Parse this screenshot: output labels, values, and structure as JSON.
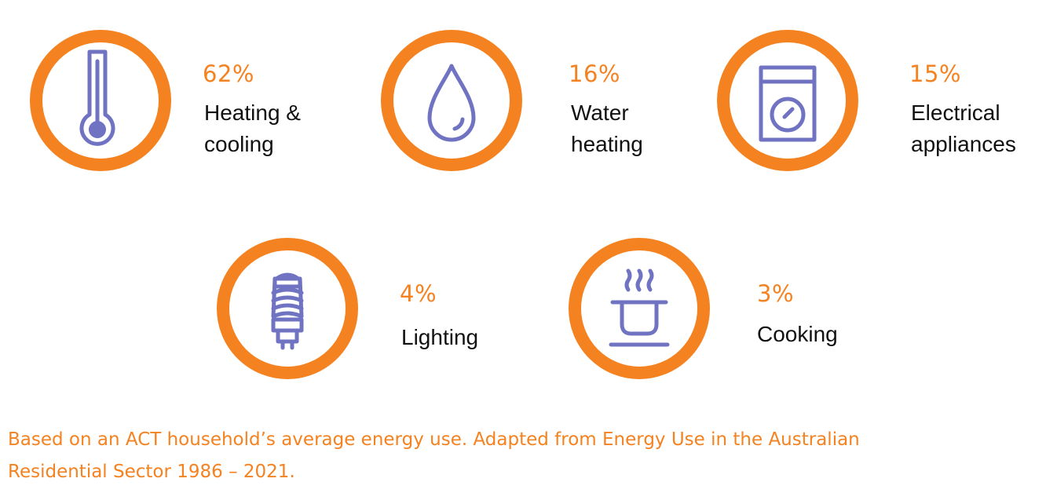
{
  "colors": {
    "accent": "#f58220",
    "icon": "#6f73c2",
    "text": "#111111"
  },
  "items": [
    {
      "icon": "thermometer-icon",
      "percent": "62%",
      "label_lines": [
        "Heating &",
        "cooling"
      ]
    },
    {
      "icon": "water-drop-icon",
      "percent": "16%",
      "label_lines": [
        "Water",
        "heating"
      ]
    },
    {
      "icon": "washing-machine-icon",
      "percent": "15%",
      "label_lines": [
        "Electrical",
        "appliances"
      ]
    },
    {
      "icon": "light-bulb-icon",
      "percent": "4%",
      "label_lines": [
        "Lighting"
      ]
    },
    {
      "icon": "cooking-pot-icon",
      "percent": "3%",
      "label_lines": [
        "Cooking"
      ]
    }
  ],
  "footnote_lines": [
    "Based on an ACT household’s average energy use. Adapted from Energy Use in the Australian",
    "Residential Sector 1986 – 2021."
  ]
}
